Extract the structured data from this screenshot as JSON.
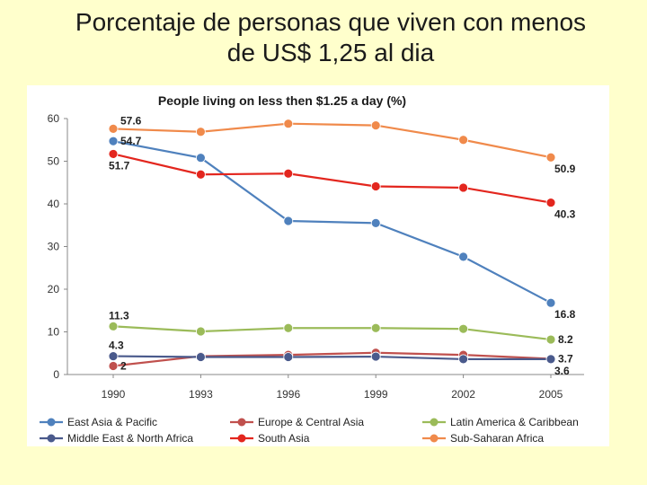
{
  "slide": {
    "title_line1": "Porcentaje de personas que viven con menos",
    "title_line2": "de US$ 1,25 al dia"
  },
  "chart_data": {
    "type": "line",
    "title": "People living on less then $1.25 a day (%)",
    "xlabel": "",
    "ylabel": "",
    "categories": [
      "1990",
      "1993",
      "1996",
      "1999",
      "2002",
      "2005"
    ],
    "ylim": [
      0,
      60
    ],
    "yticks": [
      0,
      10,
      20,
      30,
      40,
      50,
      60
    ],
    "grid": false,
    "legend_position": "bottom",
    "series": [
      {
        "name": "East Asia & Pacific",
        "color": "#4f81bd",
        "values": [
          54.7,
          50.8,
          36.0,
          35.5,
          27.6,
          16.8
        ]
      },
      {
        "name": "Europe & Central Asia",
        "color": "#c0504d",
        "values": [
          2.0,
          4.3,
          4.6,
          5.1,
          4.6,
          3.7
        ]
      },
      {
        "name": "Latin America & Caribbean",
        "color": "#9bbb59",
        "values": [
          11.3,
          10.1,
          10.9,
          10.9,
          10.7,
          8.2
        ]
      },
      {
        "name": "Middle East & North Africa",
        "color": "#4a5a8c",
        "values": [
          4.3,
          4.1,
          4.1,
          4.2,
          3.6,
          3.6
        ]
      },
      {
        "name": "South Asia",
        "color": "#e3261e",
        "values": [
          51.7,
          46.9,
          47.1,
          44.1,
          43.8,
          40.3
        ]
      },
      {
        "name": "Sub-Saharan Africa",
        "color": "#f08a4b",
        "values": [
          57.6,
          56.9,
          58.8,
          58.4,
          55.0,
          50.9
        ]
      }
    ],
    "data_labels": [
      {
        "text": "57.6",
        "series": 5,
        "index": 0,
        "pos": "right-above"
      },
      {
        "text": "54.7",
        "series": 0,
        "index": 0,
        "pos": "right"
      },
      {
        "text": "51.7",
        "series": 4,
        "index": 0,
        "pos": "below"
      },
      {
        "text": "11.3",
        "series": 2,
        "index": 0,
        "pos": "above"
      },
      {
        "text": "4.3",
        "series": 3,
        "index": 0,
        "pos": "above"
      },
      {
        "text": "2",
        "series": 1,
        "index": 0,
        "pos": "right"
      },
      {
        "text": "50.9",
        "series": 5,
        "index": 5,
        "pos": "below"
      },
      {
        "text": "40.3",
        "series": 4,
        "index": 5,
        "pos": "below"
      },
      {
        "text": "16.8",
        "series": 0,
        "index": 5,
        "pos": "below"
      },
      {
        "text": "8.2",
        "series": 2,
        "index": 5,
        "pos": "right"
      },
      {
        "text": "3.7",
        "series": 1,
        "index": 5,
        "pos": "right"
      },
      {
        "text": "3.6",
        "series": 3,
        "index": 5,
        "pos": "below"
      }
    ]
  }
}
